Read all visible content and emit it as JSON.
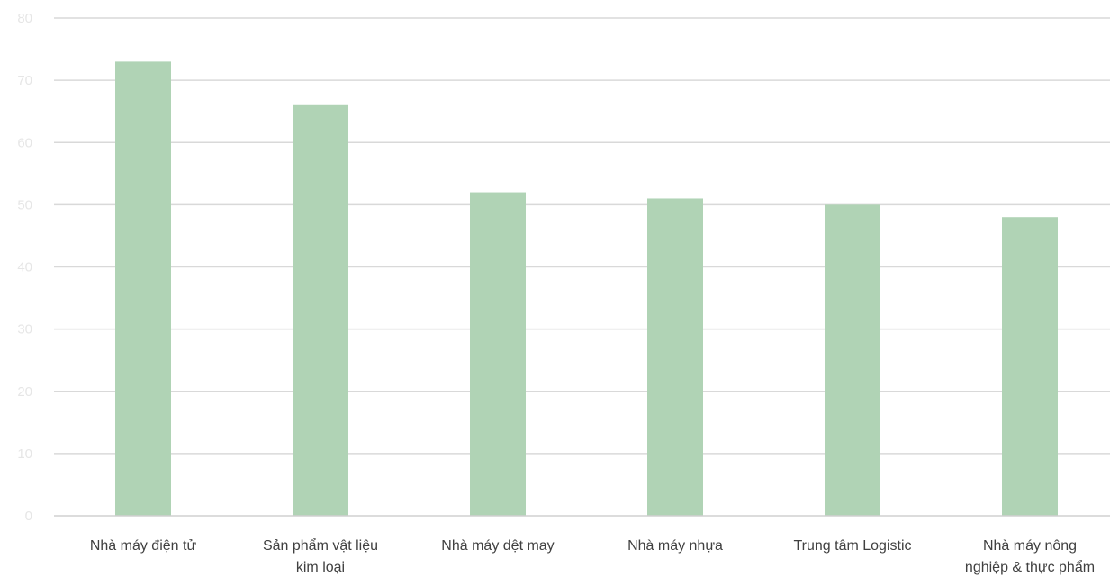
{
  "chart_data": {
    "type": "bar",
    "title": "",
    "xlabel": "",
    "ylabel": "",
    "categories": [
      [
        "Nhà máy điện tử"
      ],
      [
        "Sản phẩm vật liệu",
        "kim loại"
      ],
      [
        "Nhà máy dệt may"
      ],
      [
        "Nhà máy nhựa"
      ],
      [
        "Trung tâm Logistic"
      ],
      [
        "Nhà máy nông",
        "nghiệp & thực phẩm"
      ]
    ],
    "values": [
      73,
      66,
      52,
      51,
      50,
      48
    ],
    "ylim": [
      0,
      80
    ],
    "yticks": [
      0,
      10,
      20,
      30,
      40,
      50,
      60,
      70,
      80
    ],
    "grid": true,
    "legend": "none",
    "colors": {
      "bar": "#b0d3b5"
    }
  }
}
